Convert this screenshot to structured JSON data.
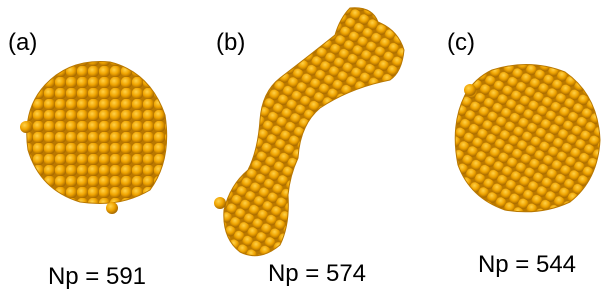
{
  "panels": [
    {
      "label": "(a)",
      "caption": "Np = 591"
    },
    {
      "label": "(b)",
      "caption": "Np = 574"
    },
    {
      "label": "(c)",
      "caption": "Np = 544"
    }
  ]
}
